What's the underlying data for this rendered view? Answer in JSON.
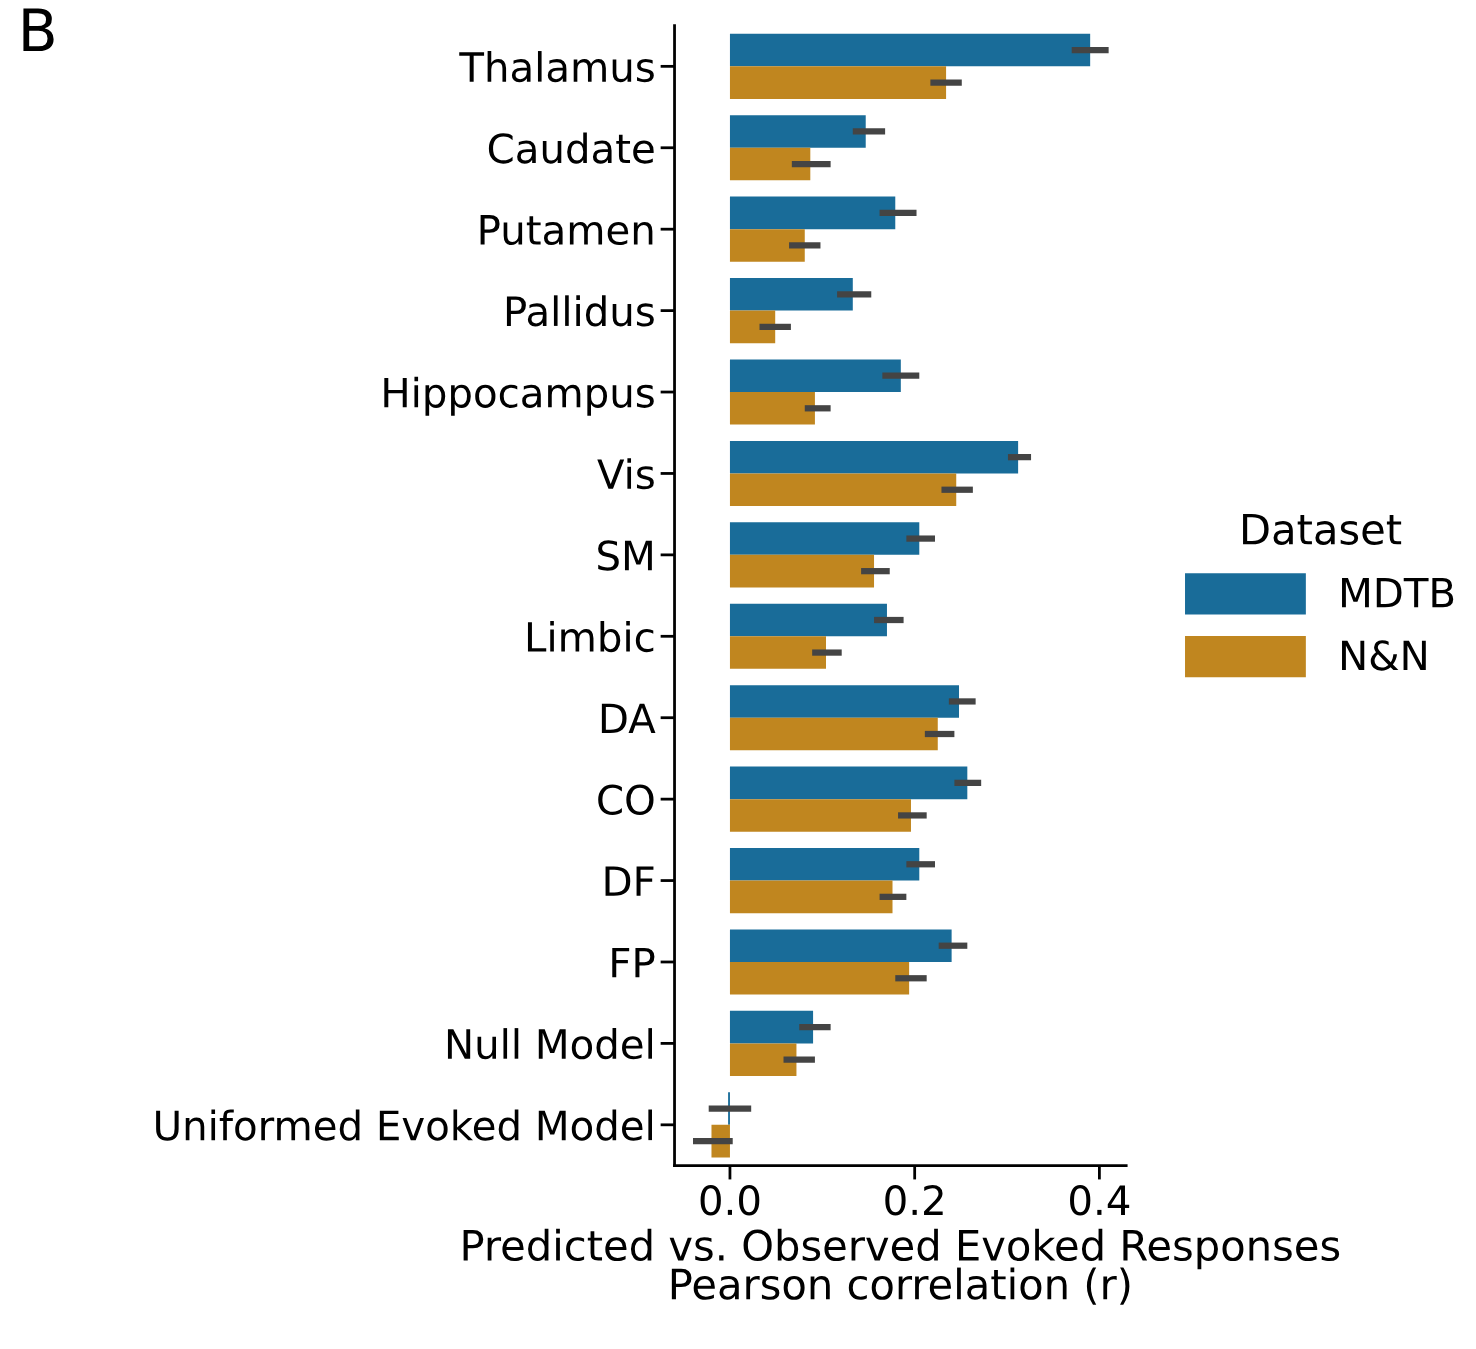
{
  "chart_data": {
    "type": "bar",
    "orientation": "horizontal",
    "categories": [
      "Thalamus",
      "Caudate",
      "Putamen",
      "Pallidus",
      "Hippocampus",
      "Vis",
      "SM",
      "Limbic",
      "DA",
      "CO",
      "DF",
      "FP",
      "Null Model",
      "Uniformed Evoked Model"
    ],
    "series": [
      {
        "name": "MDTB",
        "color": "#196c99",
        "values": [
          0.39,
          0.147,
          0.179,
          0.133,
          0.185,
          0.312,
          0.205,
          0.17,
          0.248,
          0.257,
          0.205,
          0.24,
          0.09,
          -0.002
        ],
        "errors": [
          [
            0.37,
            0.41
          ],
          [
            0.133,
            0.168
          ],
          [
            0.162,
            0.202
          ],
          [
            0.116,
            0.153
          ],
          [
            0.165,
            0.205
          ],
          [
            0.301,
            0.326
          ],
          [
            0.191,
            0.222
          ],
          [
            0.156,
            0.188
          ],
          [
            0.237,
            0.266
          ],
          [
            0.243,
            0.272
          ],
          [
            0.191,
            0.222
          ],
          [
            0.226,
            0.257
          ],
          [
            0.075,
            0.109
          ],
          [
            -0.023,
            0.023
          ]
        ]
      },
      {
        "name": "N&N",
        "color": "#c0861f",
        "values": [
          0.234,
          0.087,
          0.081,
          0.049,
          0.092,
          0.245,
          0.156,
          0.104,
          0.225,
          0.196,
          0.176,
          0.194,
          0.072,
          -0.02
        ],
        "errors": [
          [
            0.217,
            0.251
          ],
          [
            0.067,
            0.109
          ],
          [
            0.064,
            0.098
          ],
          [
            0.032,
            0.066
          ],
          [
            0.081,
            0.109
          ],
          [
            0.229,
            0.263
          ],
          [
            0.142,
            0.173
          ],
          [
            0.089,
            0.121
          ],
          [
            0.211,
            0.243
          ],
          [
            0.182,
            0.213
          ],
          [
            0.162,
            0.191
          ],
          [
            0.179,
            0.213
          ],
          [
            0.058,
            0.092
          ],
          [
            -0.04,
            0.003
          ]
        ]
      }
    ],
    "xlabel": "Predicted vs. Observed Evoked Responses\nPearson correlation (r)",
    "xlim": [
      -0.06,
      0.429
    ],
    "xticks": [
      {
        "value": 0,
        "label": "0.0"
      },
      0.2,
      0.4
    ],
    "legend": "right",
    "legend_title": "Dataset",
    "grid": false,
    "annotations": [
      "B"
    ]
  }
}
